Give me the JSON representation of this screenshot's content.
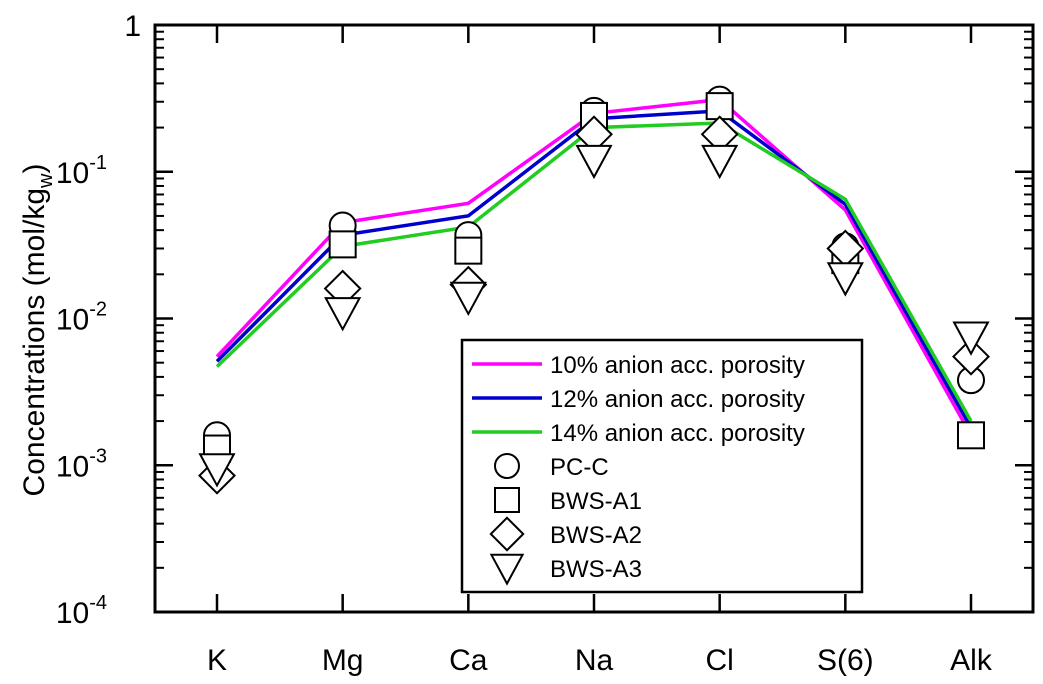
{
  "chart_data": {
    "type": "line",
    "categories": [
      "K",
      "Mg",
      "Ca",
      "Na",
      "Cl",
      "S(6)",
      "Alk"
    ],
    "y_scale": "log",
    "ylim": [
      0.0001,
      1
    ],
    "ylabel_text": "Concentrations (mol/kg",
    "ylabel_sub": "w",
    "ylabel_close": ")",
    "y_ticks": [
      {
        "value": 1,
        "label": "1"
      },
      {
        "value": 0.1,
        "mantissa": "10",
        "exponent": "-1"
      },
      {
        "value": 0.01,
        "mantissa": "10",
        "exponent": "-2"
      },
      {
        "value": 0.001,
        "mantissa": "10",
        "exponent": "-3"
      },
      {
        "value": 0.0001,
        "mantissa": "10",
        "exponent": "-4"
      }
    ],
    "grid": false,
    "legend_position": "lower-right",
    "series": [
      {
        "name": "10% anion acc. porosity",
        "kind": "line",
        "color": "#ff00ff",
        "values": [
          0.0055,
          0.045,
          0.061,
          0.25,
          0.31,
          0.055,
          0.0016
        ]
      },
      {
        "name": "12% anion acc. porosity",
        "kind": "line",
        "color": "#0000cc",
        "values": [
          0.0051,
          0.037,
          0.05,
          0.23,
          0.26,
          0.06,
          0.0018
        ]
      },
      {
        "name": "14% anion acc. porosity",
        "kind": "line",
        "color": "#22cc22",
        "values": [
          0.0047,
          0.031,
          0.042,
          0.2,
          0.215,
          0.065,
          0.002
        ]
      },
      {
        "name": "PC-C",
        "kind": "marker",
        "marker": "circle",
        "color": "#000000",
        "values": [
          0.0016,
          0.043,
          0.037,
          0.26,
          0.31,
          0.031,
          0.0038
        ]
      },
      {
        "name": "BWS-A1",
        "kind": "marker",
        "marker": "square",
        "color": "#000000",
        "values": [
          0.0013,
          0.032,
          0.029,
          0.24,
          0.28,
          0.025,
          0.0016
        ]
      },
      {
        "name": "BWS-A2",
        "kind": "marker",
        "marker": "diamond",
        "color": "#000000",
        "values": [
          0.00085,
          0.016,
          0.017,
          0.18,
          0.18,
          0.03,
          0.0055
        ]
      },
      {
        "name": "BWS-A3",
        "kind": "marker",
        "marker": "triangle-down",
        "color": "#000000",
        "values": [
          0.00095,
          0.011,
          0.014,
          0.12,
          0.12,
          0.019,
          0.0075
        ]
      }
    ]
  }
}
